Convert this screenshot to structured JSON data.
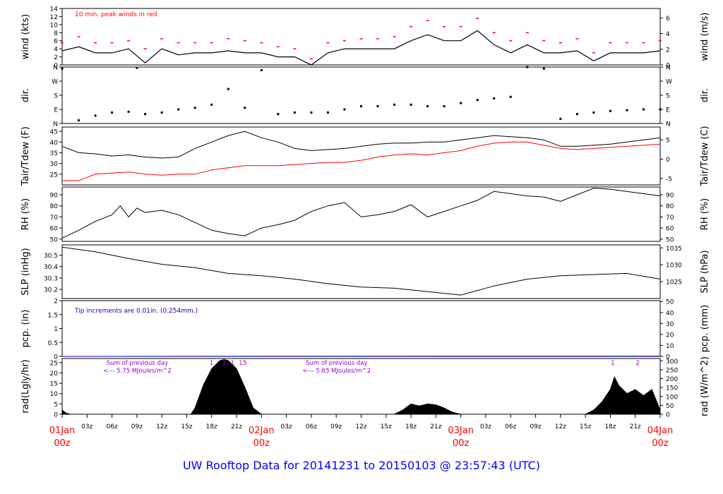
{
  "footer": {
    "title": "UW Rooftop Data for 20141231  to  20150103 @ 23:57:43  (UTC)"
  },
  "colors": {
    "red": "#ff0000",
    "blue": "#0000cc",
    "purple": "#9900cc",
    "black": "#000000",
    "footer": "#0000ff"
  },
  "time_axis": {
    "hours_total": 72,
    "labels": [
      {
        "h": 0,
        "text": "01Jan",
        "sub": "00z",
        "major": true
      },
      {
        "h": 3,
        "text": "03z"
      },
      {
        "h": 6,
        "text": "06z"
      },
      {
        "h": 9,
        "text": "09z"
      },
      {
        "h": 12,
        "text": "12z"
      },
      {
        "h": 15,
        "text": "15z"
      },
      {
        "h": 18,
        "text": "18z"
      },
      {
        "h": 21,
        "text": "21z"
      },
      {
        "h": 24,
        "text": "02Jan",
        "sub": "00z",
        "major": true
      },
      {
        "h": 27,
        "text": "03z"
      },
      {
        "h": 30,
        "text": "06z"
      },
      {
        "h": 33,
        "text": "09z"
      },
      {
        "h": 36,
        "text": "12z"
      },
      {
        "h": 39,
        "text": "15z"
      },
      {
        "h": 42,
        "text": "18z"
      },
      {
        "h": 45,
        "text": "21z"
      },
      {
        "h": 48,
        "text": "03Jan",
        "sub": "00z",
        "major": true
      },
      {
        "h": 51,
        "text": "03z"
      },
      {
        "h": 54,
        "text": "06z"
      },
      {
        "h": 57,
        "text": "09z"
      },
      {
        "h": 60,
        "text": "12z"
      },
      {
        "h": 63,
        "text": "15z"
      },
      {
        "h": 66,
        "text": "18z"
      },
      {
        "h": 69,
        "text": "21z"
      },
      {
        "h": 72,
        "text": "04Jan",
        "sub": "00z",
        "major": true
      }
    ]
  },
  "chart_data": [
    {
      "type": "line",
      "panel": "wind",
      "ylabel": "wind (kts)",
      "ylabel_right": "wind (m/s)",
      "ylim": [
        0,
        14
      ],
      "yticks": [
        0,
        2,
        4,
        6,
        8,
        10,
        12,
        14
      ],
      "right_ylim": [
        0,
        7.2
      ],
      "right_ticks": [
        0,
        2,
        4,
        6
      ],
      "annotation": "10 min. peak winds in red",
      "x": [
        0,
        2,
        4,
        6,
        8,
        10,
        12,
        14,
        16,
        18,
        20,
        22,
        24,
        26,
        28,
        30,
        32,
        34,
        36,
        38,
        40,
        42,
        44,
        46,
        48,
        50,
        52,
        54,
        56,
        58,
        60,
        62,
        64,
        66,
        68,
        70,
        72
      ],
      "series": [
        {
          "values": [
            3.5,
            4.5,
            3,
            3,
            4,
            0.5,
            4,
            2.5,
            3,
            3,
            3.5,
            3,
            3,
            2,
            2,
            0,
            3,
            4,
            4,
            4,
            4,
            6,
            7.5,
            6,
            6,
            8.5,
            5,
            3,
            5,
            3,
            3,
            3.5,
            1,
            3,
            3,
            3,
            3.5
          ]
        },
        {
          "values": [
            5.5,
            7,
            5.5,
            5.5,
            6,
            4,
            6.5,
            5.5,
            5.5,
            5.5,
            6.5,
            6,
            5.5,
            4.5,
            4,
            1.5,
            5.5,
            6,
            6.5,
            6.5,
            7,
            9.5,
            11,
            9.5,
            9.5,
            11.5,
            8,
            6,
            8,
            6,
            5.5,
            6.5,
            3,
            5.5,
            5.5,
            5.5,
            6
          ]
        }
      ]
    },
    {
      "type": "scatter",
      "panel": "dir",
      "ylabel": "dir.",
      "ylabel_right": "dir.",
      "yticks_labels": [
        "N",
        "E",
        "S",
        "W",
        "N"
      ],
      "x": [
        0,
        2,
        4,
        6,
        8,
        9,
        10,
        12,
        14,
        16,
        18,
        20,
        22,
        24,
        26,
        28,
        30,
        32,
        34,
        36,
        38,
        40,
        42,
        44,
        46,
        48,
        50,
        52,
        54,
        56,
        58,
        60,
        62,
        64,
        66,
        68,
        70,
        72
      ],
      "values": [
        350,
        20,
        50,
        70,
        75,
        355,
        60,
        70,
        90,
        100,
        120,
        220,
        100,
        340,
        60,
        70,
        70,
        70,
        90,
        110,
        110,
        120,
        120,
        110,
        110,
        130,
        150,
        160,
        170,
        360,
        350,
        30,
        60,
        70,
        80,
        85,
        90,
        90
      ]
    },
    {
      "type": "line",
      "panel": "temp",
      "ylabel": "Tair/Tdew (F)",
      "ylabel_right": "Tair/Tdew (C)",
      "ylim": [
        20,
        47
      ],
      "yticks": [
        25,
        30,
        35,
        40,
        45
      ],
      "right_ticks": [
        -5,
        0,
        5
      ],
      "x": [
        0,
        2,
        4,
        6,
        8,
        10,
        12,
        14,
        16,
        18,
        20,
        22,
        24,
        26,
        28,
        30,
        32,
        34,
        36,
        38,
        40,
        42,
        44,
        46,
        48,
        50,
        52,
        54,
        56,
        58,
        60,
        62,
        64,
        66,
        68,
        70,
        72
      ],
      "series": [
        {
          "name": "Tair",
          "color": "#000000",
          "values": [
            38,
            35,
            34.5,
            33.5,
            34,
            33,
            32.5,
            33,
            37,
            40,
            43,
            45,
            42,
            40,
            37,
            36,
            36.5,
            37,
            38,
            39,
            39.5,
            39.5,
            40,
            40,
            41,
            42,
            43,
            42.5,
            42,
            41,
            38,
            38,
            38.5,
            39,
            40,
            41,
            42
          ]
        },
        {
          "name": "Tdew",
          "color": "#ff0000",
          "values": [
            22,
            22,
            25,
            25.5,
            26,
            25,
            24.5,
            25,
            25,
            27,
            28,
            29,
            29,
            29,
            29.5,
            30,
            30.5,
            30.5,
            31.5,
            33,
            34,
            34.5,
            34,
            35,
            36,
            38,
            39.5,
            40,
            40,
            38.5,
            37,
            36.5,
            37,
            37.5,
            38,
            38.5,
            39
          ]
        }
      ]
    },
    {
      "type": "line",
      "panel": "rh",
      "ylabel": "RH (%)",
      "ylabel_right": "RH (%)",
      "ylim": [
        48,
        97
      ],
      "yticks": [
        50,
        60,
        70,
        80,
        90
      ],
      "x": [
        0,
        2,
        4,
        6,
        7,
        8,
        9,
        10,
        12,
        14,
        16,
        18,
        20,
        22,
        24,
        26,
        28,
        30,
        32,
        34,
        36,
        38,
        40,
        42,
        44,
        46,
        48,
        50,
        52,
        54,
        56,
        58,
        60,
        62,
        64,
        66,
        68,
        70,
        72
      ],
      "values": [
        51,
        58,
        66,
        72,
        80,
        70,
        78,
        74,
        76,
        72,
        65,
        58,
        55,
        53,
        60,
        63,
        67,
        75,
        80,
        83,
        70,
        72,
        75,
        81,
        70,
        75,
        80,
        85,
        93,
        91,
        89,
        88,
        84,
        90,
        96,
        95,
        93,
        91,
        89
      ]
    },
    {
      "type": "line",
      "panel": "slp",
      "ylabel": "SLP (inHg)",
      "ylabel_right": "SLP (hPa)",
      "ylim": [
        30.12,
        30.59
      ],
      "yticks": [
        30.2,
        30.3,
        30.4,
        30.5
      ],
      "right_ticks": [
        1025,
        1030,
        1035
      ],
      "x": [
        0,
        4,
        8,
        12,
        16,
        20,
        24,
        28,
        32,
        36,
        40,
        44,
        48,
        52,
        56,
        60,
        64,
        68,
        72
      ],
      "values": [
        30.57,
        30.53,
        30.47,
        30.42,
        30.39,
        30.34,
        30.32,
        30.29,
        30.25,
        30.22,
        30.21,
        30.18,
        30.15,
        30.23,
        30.29,
        30.32,
        30.33,
        30.34,
        30.29
      ]
    },
    {
      "type": "line",
      "panel": "pcp",
      "ylabel": "pcp. (in)",
      "ylabel_right": "pcp. (mm)",
      "ylim": [
        0,
        2.0
      ],
      "yticks": [
        0.0,
        0.5,
        1.0,
        1.5,
        2.0
      ],
      "right_ticks": [
        0,
        10,
        20,
        30,
        40,
        50
      ],
      "annotation": "Tip increments are 0.01in. (0.254mm.)",
      "x": [
        0,
        48,
        72
      ],
      "values": [
        0,
        0.01,
        0.01
      ]
    },
    {
      "type": "area",
      "panel": "rad",
      "ylabel": "rad(Lgly/hr)",
      "ylabel_right": "rad (W/m^2)",
      "ylim": [
        0,
        27
      ],
      "yticks": [
        0,
        5,
        10,
        15,
        20,
        25
      ],
      "right_ticks": [
        0,
        50,
        100,
        150,
        200,
        250,
        300
      ],
      "annotations": [
        {
          "h": 6.5,
          "line1": "Sum of previous day",
          "line2": "<--- 5.75 MJoules/m^2"
        },
        {
          "h": 30.5,
          "line1": "Sum of previous day",
          "line2": "<--- 5.65 MJoules/m^2"
        }
      ],
      "markers": [
        {
          "h": 18,
          "text": "1"
        },
        {
          "h": 19.5,
          "text": "1"
        },
        {
          "h": 20.5,
          "text": "1"
        },
        {
          "h": 21.5,
          "text": "1"
        },
        {
          "h": 22,
          "text": "5"
        },
        {
          "h": 66.3,
          "text": "1"
        },
        {
          "h": 69.3,
          "text": "2"
        }
      ],
      "x": [
        0,
        0.5,
        1,
        15.5,
        16,
        17,
        18,
        19,
        19.5,
        20,
        21,
        22,
        23,
        24,
        25,
        40,
        41,
        42,
        43,
        44,
        45,
        46,
        47,
        48,
        49,
        63,
        64,
        65,
        66,
        66.5,
        67,
        68,
        69,
        70,
        71,
        72
      ],
      "values": [
        2,
        0.5,
        0,
        0,
        3,
        14,
        22,
        26,
        26.5,
        26,
        22,
        13,
        3,
        0,
        0,
        0,
        2,
        5,
        4,
        5,
        4.5,
        3,
        1,
        0,
        0,
        0,
        2,
        6,
        12,
        18,
        14,
        10,
        12,
        9,
        12,
        2
      ]
    }
  ]
}
